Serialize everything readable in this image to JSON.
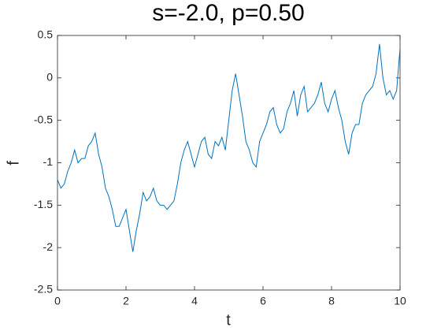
{
  "chart_data": {
    "type": "line",
    "title": "s=-2.0, p=0.50",
    "x_label": "t",
    "y_label": "f",
    "x": [
      0,
      0.1,
      0.2,
      0.3,
      0.4,
      0.5,
      0.6,
      0.7,
      0.8,
      0.9,
      1,
      1.1,
      1.2,
      1.3,
      1.4,
      1.5,
      1.6,
      1.7,
      1.8,
      1.9,
      2,
      2.1,
      2.2,
      2.3,
      2.4,
      2.5,
      2.6,
      2.7,
      2.8,
      2.9,
      3,
      3.1,
      3.2,
      3.3,
      3.4,
      3.5,
      3.6,
      3.7,
      3.8,
      3.9,
      4,
      4.1,
      4.2,
      4.3,
      4.4,
      4.5,
      4.6,
      4.7,
      4.8,
      4.9,
      5,
      5.1,
      5.2,
      5.3,
      5.4,
      5.5,
      5.6,
      5.7,
      5.8,
      5.9,
      6,
      6.1,
      6.2,
      6.3,
      6.4,
      6.5,
      6.6,
      6.7,
      6.8,
      6.9,
      7,
      7.1,
      7.2,
      7.3,
      7.4,
      7.5,
      7.6,
      7.7,
      7.8,
      7.9,
      8,
      8.1,
      8.2,
      8.3,
      8.4,
      8.5,
      8.6,
      8.7,
      8.8,
      8.9,
      9,
      9.1,
      9.2,
      9.3,
      9.4,
      9.5,
      9.6,
      9.7,
      9.8,
      9.9,
      10
    ],
    "series": [
      {
        "name": "f",
        "color": "#0072bd",
        "values": [
          -1.2,
          -1.3,
          -1.25,
          -1.1,
          -1.0,
          -0.85,
          -1.0,
          -0.95,
          -0.95,
          -0.8,
          -0.75,
          -0.65,
          -0.9,
          -1.05,
          -1.3,
          -1.4,
          -1.55,
          -1.75,
          -1.75,
          -1.65,
          -1.55,
          -1.8,
          -2.05,
          -1.8,
          -1.6,
          -1.35,
          -1.45,
          -1.4,
          -1.3,
          -1.45,
          -1.5,
          -1.5,
          -1.55,
          -1.5,
          -1.45,
          -1.25,
          -1.0,
          -0.85,
          -0.75,
          -0.9,
          -1.05,
          -0.9,
          -0.75,
          -0.7,
          -0.9,
          -0.95,
          -0.75,
          -0.8,
          -0.7,
          -0.85,
          -0.5,
          -0.15,
          0.05,
          -0.2,
          -0.45,
          -0.75,
          -0.85,
          -1.0,
          -1.05,
          -0.75,
          -0.65,
          -0.55,
          -0.4,
          -0.35,
          -0.55,
          -0.65,
          -0.6,
          -0.4,
          -0.3,
          -0.15,
          -0.45,
          -0.2,
          -0.1,
          -0.4,
          -0.35,
          -0.3,
          -0.2,
          -0.05,
          -0.3,
          -0.4,
          -0.25,
          -0.15,
          -0.35,
          -0.5,
          -0.75,
          -0.9,
          -0.65,
          -0.55,
          -0.55,
          -0.3,
          -0.2,
          -0.15,
          -0.1,
          0.05,
          0.4,
          0.0,
          -0.2,
          -0.15,
          -0.25,
          -0.15,
          0.35
        ]
      }
    ],
    "xlim": [
      0,
      10
    ],
    "xticks": [
      0,
      2,
      4,
      6,
      8,
      10
    ],
    "ylim": [
      -2.5,
      0.5
    ],
    "yticks": [
      -2.5,
      -2,
      -1.5,
      -1,
      -0.5,
      0,
      0.5
    ]
  }
}
